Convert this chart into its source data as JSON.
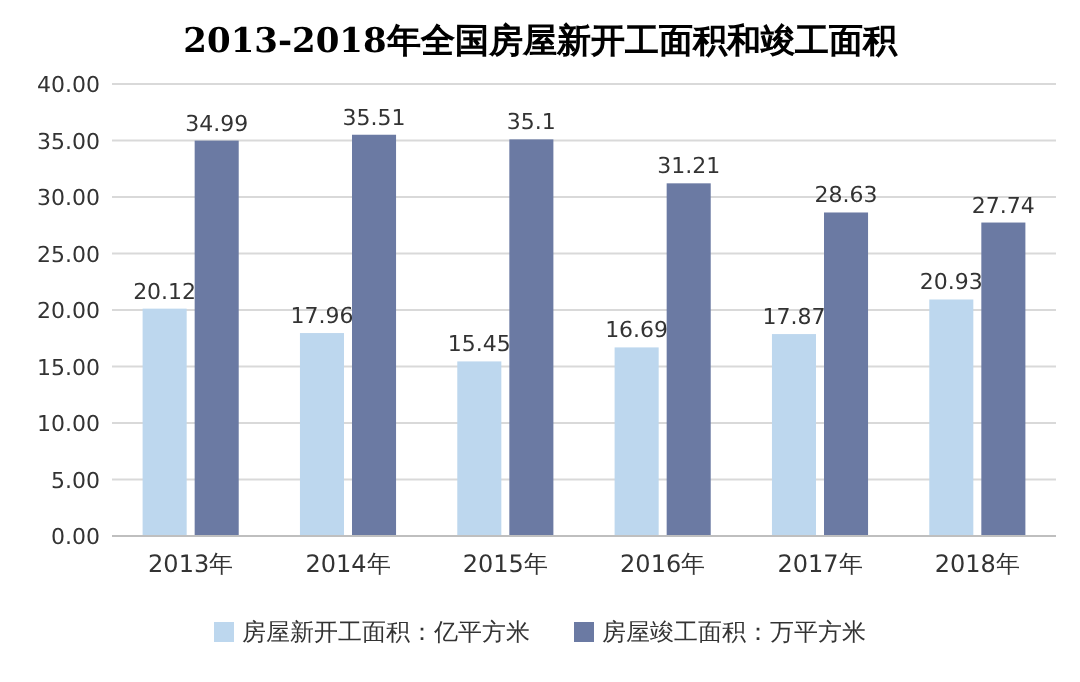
{
  "chart_data": {
    "type": "bar",
    "title": "2013-2018年全国房屋新开工面积和竣工面积",
    "categories": [
      "2013年",
      "2014年",
      "2015年",
      "2016年",
      "2017年",
      "2018年"
    ],
    "series": [
      {
        "name": "房屋新开工面积：亿平方米",
        "color": "#bdd7ee",
        "values": [
          20.12,
          17.96,
          15.45,
          16.69,
          17.87,
          20.93
        ]
      },
      {
        "name": "房屋竣工面积：万平方米",
        "color": "#6b7aa3",
        "values": [
          34.99,
          35.51,
          35.1,
          31.21,
          28.63,
          27.74
        ]
      }
    ],
    "ylim": [
      0,
      40
    ],
    "yticks": [
      {
        "value": 0,
        "label": "0.00"
      },
      {
        "value": 5,
        "label": "5.00"
      },
      {
        "value": 10,
        "label": "10.00"
      },
      {
        "value": 15,
        "label": "15.00"
      },
      {
        "value": 20,
        "label": "20.00"
      },
      {
        "value": 25,
        "label": "25.00"
      },
      {
        "value": 30,
        "label": "30.00"
      },
      {
        "value": 35,
        "label": "35.00"
      },
      {
        "value": 40,
        "label": "40.00"
      }
    ],
    "grid": "y",
    "legend": "bottom",
    "data_labels": true
  }
}
